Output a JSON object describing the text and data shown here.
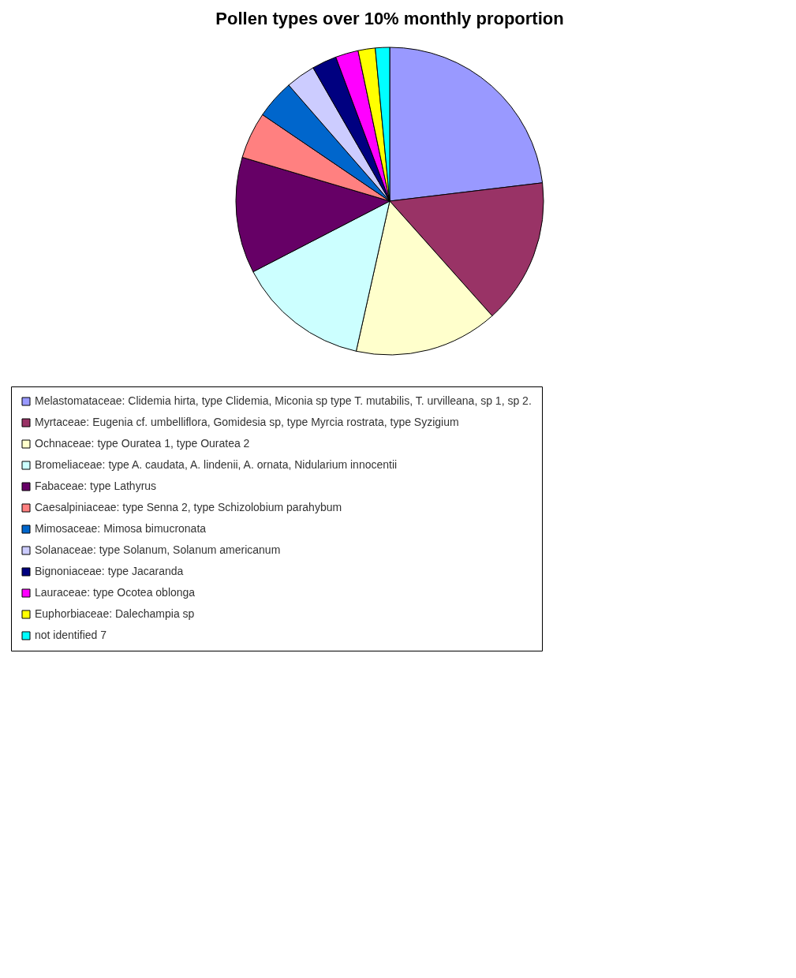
{
  "chart_data": {
    "type": "pie",
    "title": "Pollen types over 10% monthly proportion",
    "categories": [
      "Melastomataceae: Clidemia hirta, type Clidemia, Miconia sp type T. mutabilis, T. urvilleana, sp 1, sp 2.",
      "Myrtaceae: Eugenia cf. umbelliflora, Gomidesia sp, type Myrcia rostrata, type Syzigium",
      "Ochnaceae: type Ouratea 1, type Ouratea 2",
      "Bromeliaceae: type A. caudata, A. lindenii, A. ornata, Nidularium innocentii",
      "Fabaceae: type Lathyrus",
      "Caesalpiniaceae: type Senna 2, type Schizolobium parahybum",
      "Mimosaceae: Mimosa bimucronata",
      "Solanaceae: type Solanum, Solanum americanum",
      "Bignoniaceae: type Jacaranda",
      "Lauraceae: type Ocotea oblonga",
      "Euphorbiaceae: Dalechampia sp",
      "not identified 7"
    ],
    "values": [
      23.1,
      15.3,
      15.1,
      13.9,
      12.2,
      4.9,
      4.1,
      3.1,
      2.6,
      2.4,
      1.8,
      1.5
    ],
    "colors": [
      "#9999ff",
      "#993366",
      "#ffffcc",
      "#ccffff",
      "#660066",
      "#ff8080",
      "#0066cc",
      "#ccccff",
      "#000080",
      "#ff00ff",
      "#ffff00",
      "#00ffff"
    ],
    "legend": "bottom"
  }
}
